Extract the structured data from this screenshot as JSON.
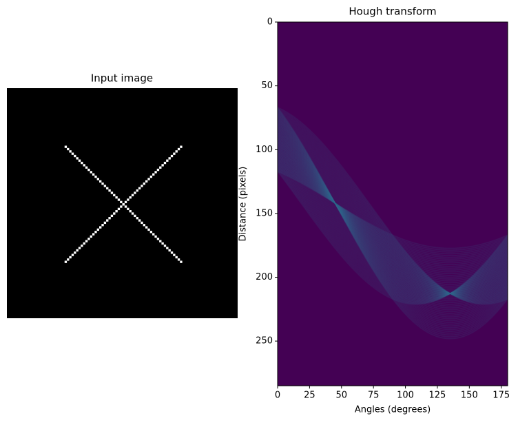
{
  "chart_data": [
    {
      "type": "image",
      "title": "Input image",
      "shape": [
        100,
        100
      ],
      "background": "#000000",
      "color": "#ffffff",
      "lines": [
        {
          "from": [
            25,
            25
          ],
          "to": [
            75,
            75
          ]
        },
        {
          "from": [
            25,
            75
          ],
          "to": [
            75,
            25
          ]
        }
      ]
    },
    {
      "type": "hough",
      "title": "Hough transform",
      "xlabel": "Angles (degrees)",
      "ylabel": "Distance (pixels)",
      "xlim": [
        0,
        180
      ],
      "ylim": [
        285,
        0
      ],
      "xticks": [
        0,
        25,
        50,
        75,
        100,
        125,
        150,
        175
      ],
      "yticks": [
        0,
        50,
        100,
        150,
        200,
        250
      ],
      "background": "#440154",
      "color": "#31688e"
    }
  ]
}
